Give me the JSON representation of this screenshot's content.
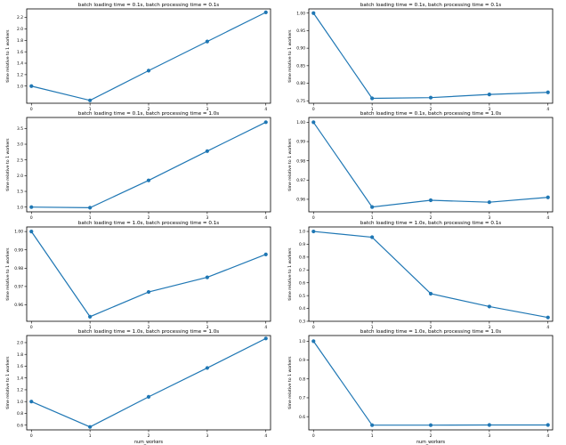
{
  "figure": {
    "line_color": "#1f77b4",
    "xlabel": "num_workers",
    "ylabel": "time relative to 1 workers"
  },
  "chart_data": [
    {
      "type": "line",
      "title": "batch loading time = 0.1s, batch processing time = 0.1s",
      "x": [
        0,
        1,
        2,
        3,
        4
      ],
      "values": [
        1.0,
        0.75,
        1.27,
        1.78,
        2.29
      ],
      "xlim": [
        -0.08,
        4.08
      ],
      "ylim": [
        0.7,
        2.35
      ],
      "yticks": [
        1.0,
        1.2,
        1.4,
        1.6,
        1.8,
        2.0,
        2.2
      ],
      "ytick_labels": [
        "1.0",
        "1.2",
        "1.4",
        "1.6",
        "1.8",
        "2.0",
        "2.2"
      ],
      "xticks": [
        0,
        1,
        2,
        3,
        4
      ],
      "xtick_labels": [
        "0",
        "1",
        "2",
        "3",
        "4"
      ],
      "xlabel": "",
      "ylabel": "time relative to 1 workers"
    },
    {
      "type": "line",
      "title": "batch loading time = 0.1s, batch processing time = 0.1s",
      "x": [
        0,
        1,
        2,
        3,
        4
      ],
      "values": [
        1.0,
        0.757,
        0.759,
        0.768,
        0.774
      ],
      "xlim": [
        -0.08,
        4.08
      ],
      "ylim": [
        0.743,
        1.012
      ],
      "yticks": [
        0.75,
        0.8,
        0.85,
        0.9,
        0.95,
        1.0
      ],
      "ytick_labels": [
        "0.75",
        "0.80",
        "0.85",
        "0.90",
        "0.95",
        "1.00"
      ],
      "xticks": [
        0,
        1,
        2,
        3,
        4
      ],
      "xtick_labels": [
        "0",
        "1",
        "2",
        "3",
        "4"
      ],
      "xlabel": "",
      "ylabel": "time relative to 1 workers"
    },
    {
      "type": "line",
      "title": "batch loading time = 0.1s, batch processing time = 1.0s",
      "x": [
        0,
        1,
        2,
        3,
        4
      ],
      "values": [
        1.0,
        0.98,
        1.85,
        2.78,
        3.7
      ],
      "xlim": [
        -0.08,
        4.08
      ],
      "ylim": [
        0.85,
        3.85
      ],
      "yticks": [
        1.0,
        1.5,
        2.0,
        2.5,
        3.0,
        3.5
      ],
      "ytick_labels": [
        "1.0",
        "1.5",
        "2.0",
        "2.5",
        "3.0",
        "3.5"
      ],
      "xticks": [
        0,
        1,
        2,
        3,
        4
      ],
      "xtick_labels": [
        "0",
        "1",
        "2",
        "3",
        "4"
      ],
      "xlabel": "",
      "ylabel": "time relative to 1 workers"
    },
    {
      "type": "line",
      "title": "batch loading time = 0.1s, batch processing time = 1.0s",
      "x": [
        0,
        1,
        2,
        3,
        4
      ],
      "values": [
        1.0,
        0.956,
        0.9595,
        0.9585,
        0.961
      ],
      "xlim": [
        -0.08,
        4.08
      ],
      "ylim": [
        0.9535,
        1.0025
      ],
      "yticks": [
        0.96,
        0.97,
        0.98,
        0.99,
        1.0
      ],
      "ytick_labels": [
        "0.96",
        "0.97",
        "0.98",
        "0.99",
        "1.00"
      ],
      "xticks": [
        0,
        1,
        2,
        3,
        4
      ],
      "xtick_labels": [
        "0",
        "1",
        "2",
        "3",
        "4"
      ],
      "xlabel": "",
      "ylabel": "time relative to 1 workers"
    },
    {
      "type": "line",
      "title": "batch loading time = 1.0s, batch processing time = 0.1s",
      "x": [
        0,
        1,
        2,
        3,
        4
      ],
      "values": [
        1.0,
        0.9535,
        0.967,
        0.975,
        0.9875
      ],
      "xlim": [
        -0.08,
        4.08
      ],
      "ylim": [
        0.951,
        1.0025
      ],
      "yticks": [
        0.96,
        0.97,
        0.98,
        0.99,
        1.0
      ],
      "ytick_labels": [
        "0.96",
        "0.97",
        "0.98",
        "0.99",
        "1.00"
      ],
      "xticks": [
        0,
        1,
        2,
        3,
        4
      ],
      "xtick_labels": [
        "0",
        "1",
        "2",
        "3",
        "4"
      ],
      "xlabel": "",
      "ylabel": "time relative to 1 workers"
    },
    {
      "type": "line",
      "title": "batch loading time = 1.0s, batch processing time = 0.1s",
      "x": [
        0,
        1,
        2,
        3,
        4
      ],
      "values": [
        1.0,
        0.955,
        0.515,
        0.415,
        0.33
      ],
      "xlim": [
        -0.08,
        4.08
      ],
      "ylim": [
        0.3,
        1.035
      ],
      "yticks": [
        0.3,
        0.4,
        0.5,
        0.6,
        0.7,
        0.8,
        0.9,
        1.0
      ],
      "ytick_labels": [
        "0.3",
        "0.4",
        "0.5",
        "0.6",
        "0.7",
        "0.8",
        "0.9",
        "1.0"
      ],
      "xticks": [
        0,
        1,
        2,
        3,
        4
      ],
      "xtick_labels": [
        "0",
        "1",
        "2",
        "3",
        "4"
      ],
      "xlabel": "",
      "ylabel": "time relative to 1 workers"
    },
    {
      "type": "line",
      "title": "batch loading time = 1.0s, batch processing time = 1.0s",
      "x": [
        0,
        1,
        2,
        3,
        4
      ],
      "values": [
        1.0,
        0.57,
        1.08,
        1.57,
        2.07
      ],
      "xlim": [
        -0.08,
        4.08
      ],
      "ylim": [
        0.52,
        2.12
      ],
      "yticks": [
        0.6,
        0.8,
        1.0,
        1.2,
        1.4,
        1.6,
        1.8,
        2.0
      ],
      "ytick_labels": [
        "0.6",
        "0.8",
        "1.0",
        "1.2",
        "1.4",
        "1.6",
        "1.8",
        "2.0"
      ],
      "xticks": [
        0,
        1,
        2,
        3,
        4
      ],
      "xtick_labels": [
        "0",
        "1",
        "2",
        "3",
        "4"
      ],
      "xlabel": "num_workers",
      "ylabel": "time relative to 1 workers"
    },
    {
      "type": "line",
      "title": "batch loading time = 1.0s, batch processing time = 1.0s",
      "x": [
        0,
        1,
        2,
        3,
        4
      ],
      "values": [
        1.0,
        0.555,
        0.555,
        0.556,
        0.556
      ],
      "xlim": [
        -0.08,
        4.08
      ],
      "ylim": [
        0.53,
        1.03
      ],
      "yticks": [
        0.6,
        0.7,
        0.8,
        0.9,
        1.0
      ],
      "ytick_labels": [
        "0.6",
        "0.7",
        "0.8",
        "0.9",
        "1.0"
      ],
      "xticks": [
        0,
        1,
        2,
        3,
        4
      ],
      "xtick_labels": [
        "0",
        "1",
        "2",
        "3",
        "4"
      ],
      "xlabel": "num_workers",
      "ylabel": "time relative to 1 workers"
    }
  ]
}
